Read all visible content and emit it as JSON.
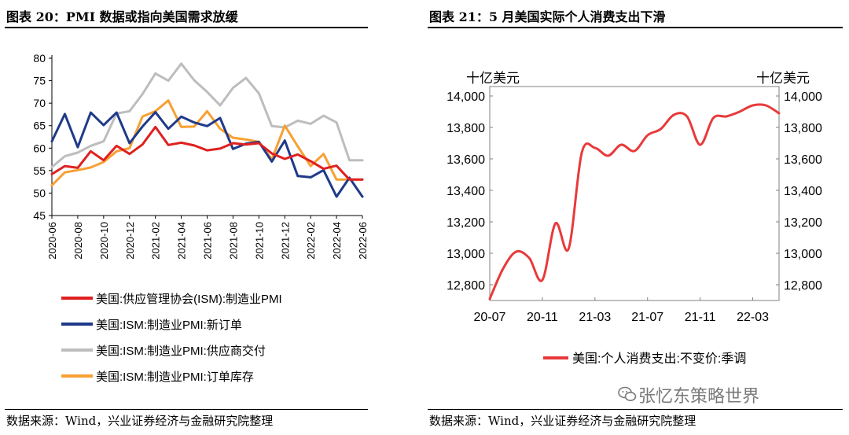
{
  "left_panel": {
    "title": "图表 20：PMI 数据或指向美国需求放缓",
    "source": "数据来源：Wind，兴业证券经济与金融研究院整理"
  },
  "right_panel": {
    "title": "图表 21：5 月美国实际个人消费支出下滑",
    "source": "数据来源：Wind，兴业证券经济与金融研究院整理"
  },
  "watermark": "张忆东策略世界",
  "chart_data": [
    {
      "type": "line",
      "x": [
        "2020-06",
        "2020-07",
        "2020-08",
        "2020-09",
        "2020-10",
        "2020-11",
        "2020-12",
        "2021-01",
        "2021-02",
        "2021-03",
        "2021-04",
        "2021-05",
        "2021-06",
        "2021-07",
        "2021-08",
        "2021-09",
        "2021-10",
        "2021-11",
        "2021-12",
        "2022-01",
        "2022-02",
        "2022-03",
        "2022-04",
        "2022-05",
        "2022-06"
      ],
      "xticks": [
        "2020-06",
        "2020-08",
        "2020-10",
        "2020-12",
        "2021-02",
        "2021-04",
        "2021-06",
        "2021-08",
        "2021-10",
        "2021-12",
        "2022-02",
        "2022-04",
        "2022-06"
      ],
      "ylim": [
        45,
        80
      ],
      "yticks": [
        45,
        50,
        55,
        60,
        65,
        70,
        75,
        80
      ],
      "legend_position": "bottom",
      "series": [
        {
          "name": "美国:供应管理协会(ISM):制造业PMI",
          "color": "#e02020",
          "values": [
            54.2,
            56.0,
            55.6,
            59.3,
            57.3,
            60.5,
            58.7,
            60.8,
            64.7,
            60.7,
            61.2,
            60.6,
            59.5,
            59.9,
            61.1,
            60.8,
            61.1,
            58.8,
            57.6,
            58.6,
            57.1,
            55.4,
            56.1,
            53.0,
            53.0
          ]
        },
        {
          "name": "美国:ISM:制造业PMI:新订单",
          "color": "#1f3a8a",
          "values": [
            61.5,
            67.6,
            60.2,
            67.9,
            65.1,
            67.9,
            61.1,
            64.8,
            68.0,
            64.3,
            67.0,
            65.7,
            64.9,
            66.7,
            59.8,
            61.0,
            61.4,
            57.0,
            61.7,
            53.8,
            53.5,
            55.1,
            49.2,
            53.4,
            49.2
          ]
        },
        {
          "name": "美国:ISM:制造业PMI:供应商交付",
          "color": "#bdbdbd",
          "values": [
            55.8,
            58.2,
            59.0,
            60.5,
            61.5,
            67.7,
            68.2,
            72.0,
            76.6,
            75.0,
            78.8,
            75.1,
            72.5,
            69.5,
            73.4,
            75.6,
            72.2,
            64.9,
            64.6,
            66.1,
            65.4,
            67.2,
            65.7,
            57.3,
            57.3
          ]
        },
        {
          "name": "美国:ISM:制造业PMI:订单库存",
          "color": "#f7a033",
          "values": [
            51.7,
            54.6,
            55.1,
            55.7,
            56.9,
            59.3,
            60.0,
            67.0,
            68.2,
            70.6,
            64.7,
            64.8,
            68.2,
            64.3,
            62.3,
            61.9,
            61.4,
            57.5,
            65.0,
            60.4,
            56.0,
            58.7,
            53.0,
            53.0,
            53.0
          ]
        }
      ]
    },
    {
      "type": "line",
      "ylabel": "十亿美元",
      "ylabel_right": "十亿美元",
      "ylim": [
        12700,
        14000
      ],
      "yticks": [
        12800,
        13000,
        13200,
        13400,
        13600,
        13800,
        14000
      ],
      "xticks": [
        "20-07",
        "20-11",
        "21-03",
        "21-07",
        "21-11",
        "22-03"
      ],
      "legend_position": "bottom",
      "series": [
        {
          "name": "美国:个人消费支出:不变价:季调",
          "color": "#e83a3a",
          "x": [
            "2020-07",
            "2020-08",
            "2020-09",
            "2020-10",
            "2020-11",
            "2020-12",
            "2021-01",
            "2021-02",
            "2021-03",
            "2021-04",
            "2021-05",
            "2021-06",
            "2021-07",
            "2021-08",
            "2021-09",
            "2021-10",
            "2021-11",
            "2021-12",
            "2022-01",
            "2022-02",
            "2022-03",
            "2022-04",
            "2022-05"
          ],
          "values": [
            12710,
            12900,
            13010,
            12970,
            12830,
            13190,
            13030,
            13640,
            13670,
            13620,
            13690,
            13650,
            13750,
            13790,
            13880,
            13870,
            13690,
            13860,
            13870,
            13900,
            13940,
            13940,
            13890
          ]
        }
      ]
    }
  ]
}
